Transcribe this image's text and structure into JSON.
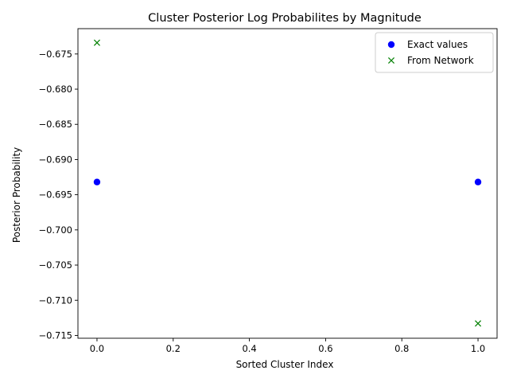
{
  "chart_data": {
    "type": "scatter",
    "title": "Cluster Posterior Log Probabilites by Magnitude",
    "xlabel": "Sorted Cluster Index",
    "ylabel": "Posterior Probability",
    "xlim": [
      -0.05,
      1.05
    ],
    "ylim": [
      -0.7154,
      -0.6714
    ],
    "x_ticks": [
      0.0,
      0.2,
      0.4,
      0.6,
      0.8,
      1.0
    ],
    "x_tick_labels": [
      "0.0",
      "0.2",
      "0.4",
      "0.6",
      "0.8",
      "1.0"
    ],
    "y_ticks": [
      -0.675,
      -0.68,
      -0.685,
      -0.69,
      -0.695,
      -0.7,
      -0.705,
      -0.71,
      -0.715
    ],
    "y_tick_labels": [
      "−0.675",
      "−0.680",
      "−0.685",
      "−0.690",
      "−0.695",
      "−0.700",
      "−0.705",
      "−0.710",
      "−0.715"
    ],
    "grid": false,
    "legend_position": "top-right",
    "series": [
      {
        "name": "Exact values",
        "marker": "circle",
        "color": "#0000ff",
        "x": [
          0,
          1
        ],
        "y": [
          -0.6932,
          -0.6932
        ]
      },
      {
        "name": "From Network",
        "marker": "x",
        "color": "#008000",
        "x": [
          0,
          1
        ],
        "y": [
          -0.6734,
          -0.7133
        ]
      }
    ]
  }
}
